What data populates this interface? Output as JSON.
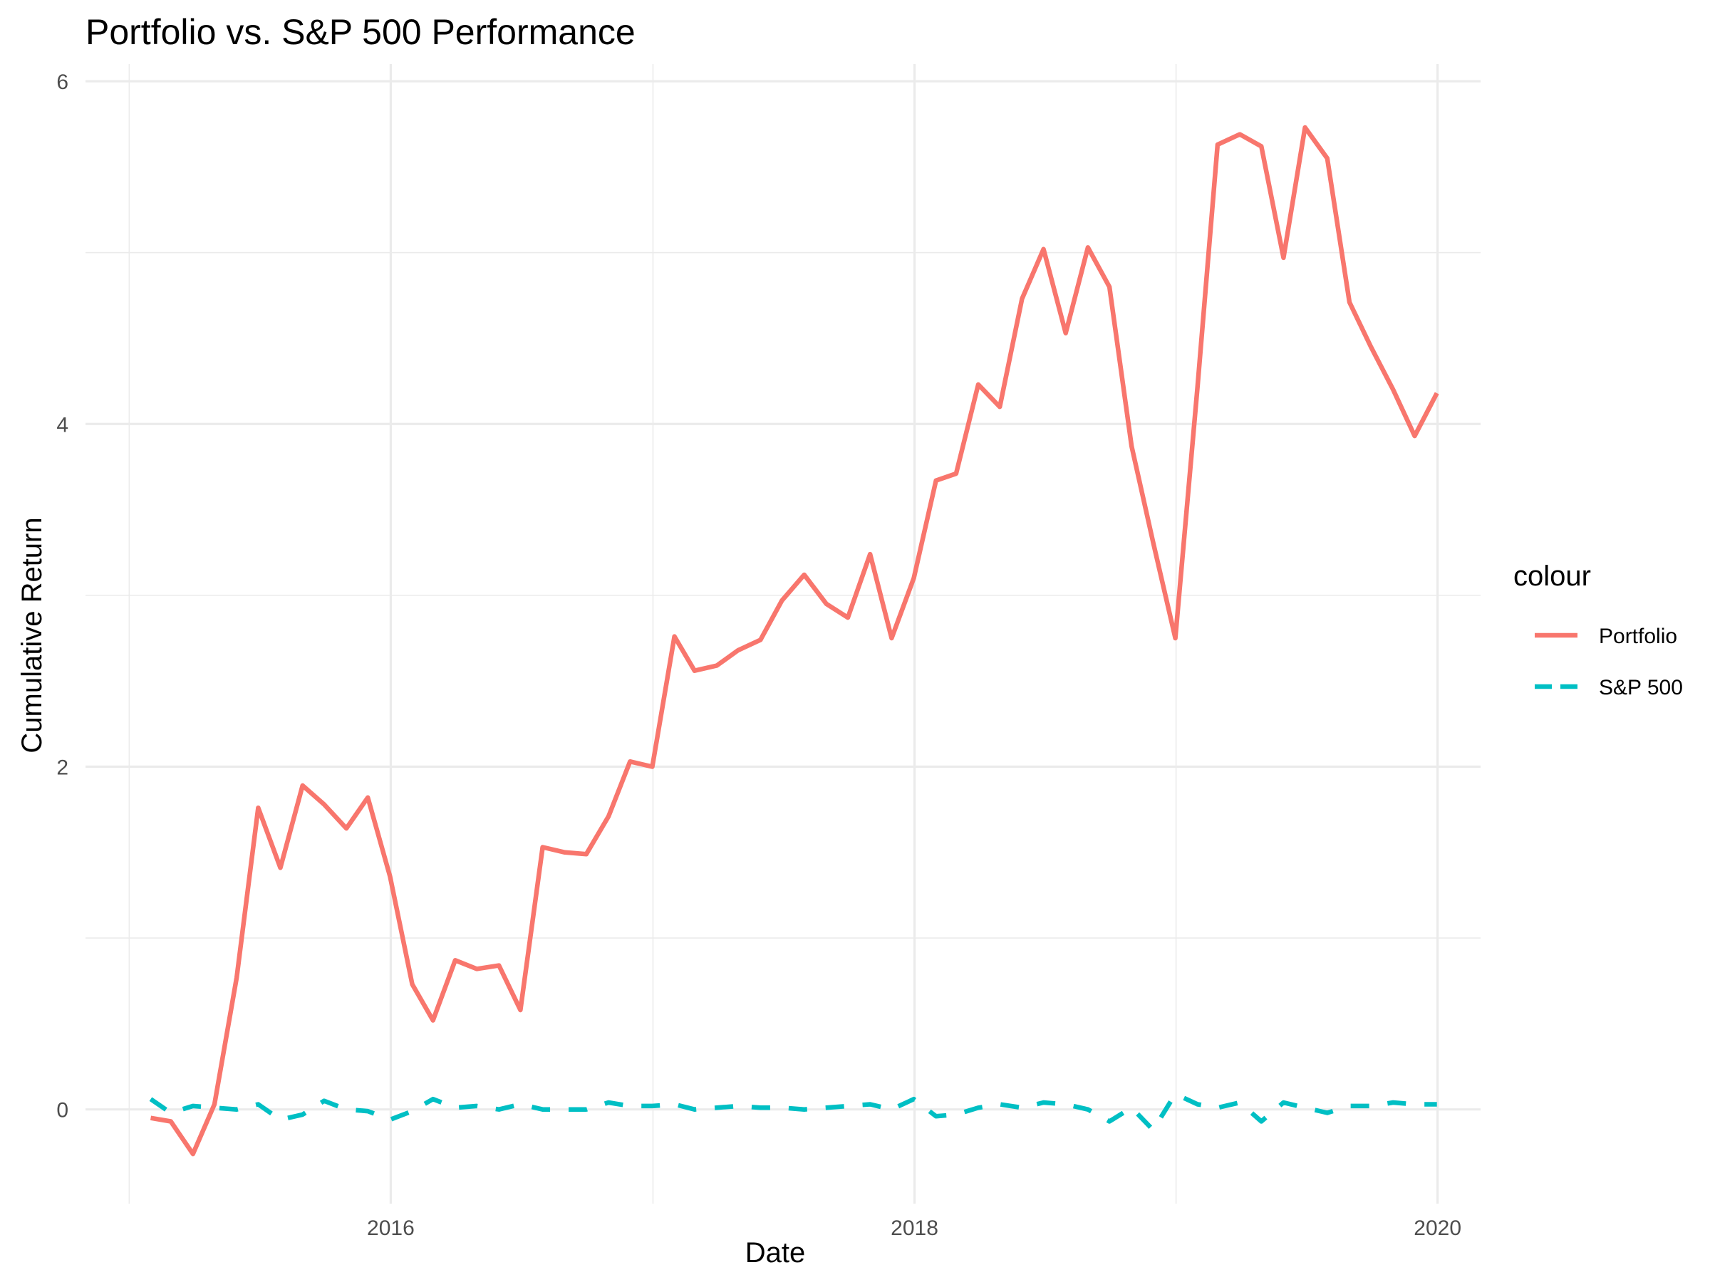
{
  "chart_data": {
    "type": "line",
    "title": "Portfolio vs. S&P 500 Performance",
    "xlabel": "Date",
    "ylabel": "Cumulative Return",
    "x_ticks": [
      "2016",
      "2018",
      "2020"
    ],
    "y_ticks": [
      "0",
      "2",
      "4",
      "6"
    ],
    "xlim": [
      "2014-11-01",
      "2020-03-01"
    ],
    "ylim": [
      -0.55,
      6.1
    ],
    "grid": true,
    "legend": {
      "title": "colour",
      "position": "right"
    },
    "x": [
      "2015-01-31",
      "2015-02-28",
      "2015-03-31",
      "2015-04-30",
      "2015-05-31",
      "2015-06-30",
      "2015-07-31",
      "2015-08-31",
      "2015-09-30",
      "2015-10-31",
      "2015-11-30",
      "2015-12-31",
      "2016-01-31",
      "2016-02-29",
      "2016-03-31",
      "2016-04-30",
      "2016-05-31",
      "2016-06-30",
      "2016-07-31",
      "2016-08-31",
      "2016-09-30",
      "2016-10-31",
      "2016-11-30",
      "2016-12-31",
      "2017-01-31",
      "2017-02-28",
      "2017-03-31",
      "2017-04-30",
      "2017-05-31",
      "2017-06-30",
      "2017-07-31",
      "2017-08-31",
      "2017-09-30",
      "2017-10-31",
      "2017-11-30",
      "2017-12-31",
      "2018-01-31",
      "2018-02-28",
      "2018-03-31",
      "2018-04-30",
      "2018-05-31",
      "2018-06-30",
      "2018-07-31",
      "2018-08-31",
      "2018-09-30",
      "2018-10-31",
      "2018-11-30",
      "2018-12-31",
      "2019-01-31",
      "2019-02-28",
      "2019-03-31",
      "2019-04-30",
      "2019-05-31",
      "2019-06-30",
      "2019-07-31",
      "2019-08-31",
      "2019-09-30",
      "2019-10-31",
      "2019-11-30",
      "2019-12-31"
    ],
    "series": [
      {
        "name": "Portfolio",
        "color": "#F8766D",
        "dash": "solid",
        "values": [
          -0.05,
          -0.07,
          -0.26,
          0.03,
          0.77,
          1.76,
          1.41,
          1.89,
          1.78,
          1.64,
          1.82,
          1.36,
          0.73,
          0.52,
          0.87,
          0.82,
          0.84,
          0.58,
          1.53,
          1.5,
          1.49,
          1.71,
          2.03,
          2.0,
          2.76,
          2.56,
          2.59,
          2.68,
          2.74,
          2.97,
          3.12,
          2.95,
          2.87,
          3.24,
          2.75,
          3.1,
          3.67,
          3.71,
          4.23,
          4.1,
          4.73,
          5.02,
          4.53,
          5.03,
          4.8,
          3.87,
          3.31,
          2.75,
          4.22,
          5.63,
          5.69,
          5.62,
          4.97,
          5.73,
          5.55,
          4.71,
          4.45,
          4.2,
          3.93,
          4.18
        ]
      },
      {
        "name": "S&P 500",
        "color": "#00BFC4",
        "dash": "dashed",
        "values": [
          0.06,
          -0.02,
          0.02,
          0.01,
          0.0,
          0.03,
          -0.06,
          -0.03,
          0.05,
          0.0,
          -0.01,
          -0.06,
          -0.01,
          0.06,
          0.01,
          0.02,
          0.0,
          0.03,
          0.0,
          0.0,
          0.0,
          0.04,
          0.02,
          0.02,
          0.03,
          0.0,
          0.01,
          0.02,
          0.01,
          0.01,
          0.0,
          0.01,
          0.02,
          0.03,
          0.0,
          0.06,
          -0.04,
          -0.03,
          0.01,
          0.03,
          0.01,
          0.04,
          0.03,
          0.0,
          -0.07,
          0.01,
          -0.12,
          0.09,
          0.03,
          0.01,
          0.04,
          -0.07,
          0.04,
          0.01,
          -0.02,
          0.02,
          0.02,
          0.04,
          0.03,
          0.03
        ]
      }
    ]
  }
}
